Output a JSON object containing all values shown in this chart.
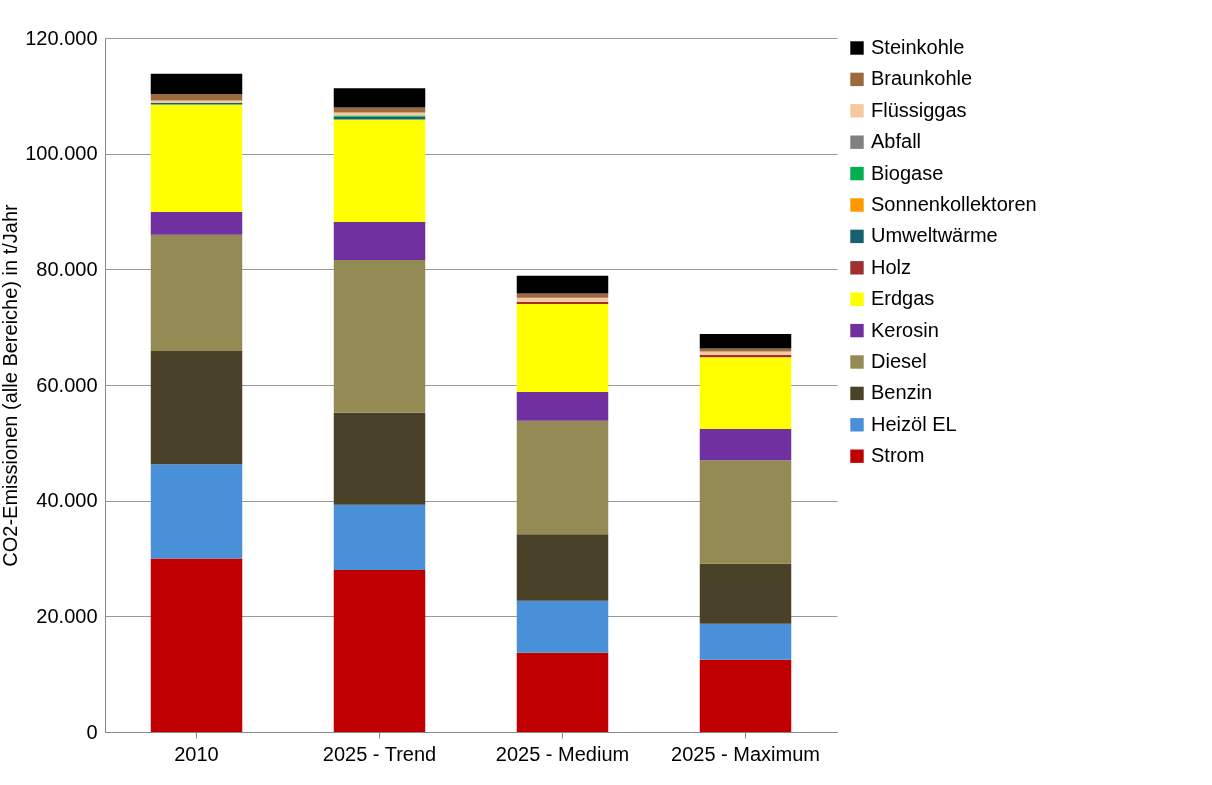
{
  "chart_data": {
    "type": "bar",
    "stacked": true,
    "ylabel": "CO2-Emissionen (alle Bereiche) in t/Jahr",
    "categories": [
      "2010",
      "2025 - Trend",
      "2025 - Medium",
      "2025 - Maximum"
    ],
    "series": [
      {
        "name": "Strom",
        "color": "#c00000",
        "values": [
          30000,
          28000,
          13700,
          12500
        ]
      },
      {
        "name": "Heizöl EL",
        "color": "#4a90d9",
        "values": [
          16300,
          11300,
          9000,
          6200
        ]
      },
      {
        "name": "Benzin",
        "color": "#4a4228",
        "values": [
          19600,
          15900,
          11500,
          10400
        ]
      },
      {
        "name": "Diesel",
        "color": "#948a54",
        "values": [
          20100,
          26400,
          19600,
          17900
        ]
      },
      {
        "name": "Kerosin",
        "color": "#7030a0",
        "values": [
          3900,
          6600,
          5000,
          5400
        ]
      },
      {
        "name": "Erdgas",
        "color": "#ffff00",
        "values": [
          18600,
          17700,
          15200,
          12400
        ]
      },
      {
        "name": "Holz",
        "color": "#a03030",
        "values": [
          0,
          0,
          400,
          400
        ]
      },
      {
        "name": "Umweltwärme",
        "color": "#17606e",
        "values": [
          300,
          500,
          0,
          0
        ]
      },
      {
        "name": "Sonnenkollektoren",
        "color": "#ff9900",
        "values": [
          0,
          0,
          0,
          0
        ]
      },
      {
        "name": "Biogase",
        "color": "#00b050",
        "values": [
          0,
          200,
          0,
          0
        ]
      },
      {
        "name": "Abfall",
        "color": "#808080",
        "values": [
          0,
          0,
          0,
          0
        ]
      },
      {
        "name": "Flüssiggas",
        "color": "#f5c9a0",
        "values": [
          400,
          500,
          700,
          600
        ]
      },
      {
        "name": "Braunkohle",
        "color": "#9c6a3c",
        "values": [
          1100,
          900,
          700,
          500
        ]
      },
      {
        "name": "Steinkohle",
        "color": "#000000",
        "values": [
          3500,
          3300,
          3100,
          2500
        ]
      }
    ],
    "ylim": [
      0,
      120000
    ],
    "yticks": [
      {
        "value": 0,
        "label": "0"
      },
      {
        "value": 20000,
        "label": "20.000"
      },
      {
        "value": 40000,
        "label": "40.000"
      },
      {
        "value": 60000,
        "label": "60.000"
      },
      {
        "value": 80000,
        "label": "80.000"
      },
      {
        "value": 100000,
        "label": "100.000"
      },
      {
        "value": 120000,
        "label": "120.000"
      }
    ],
    "grid": "y",
    "legend": "right"
  }
}
